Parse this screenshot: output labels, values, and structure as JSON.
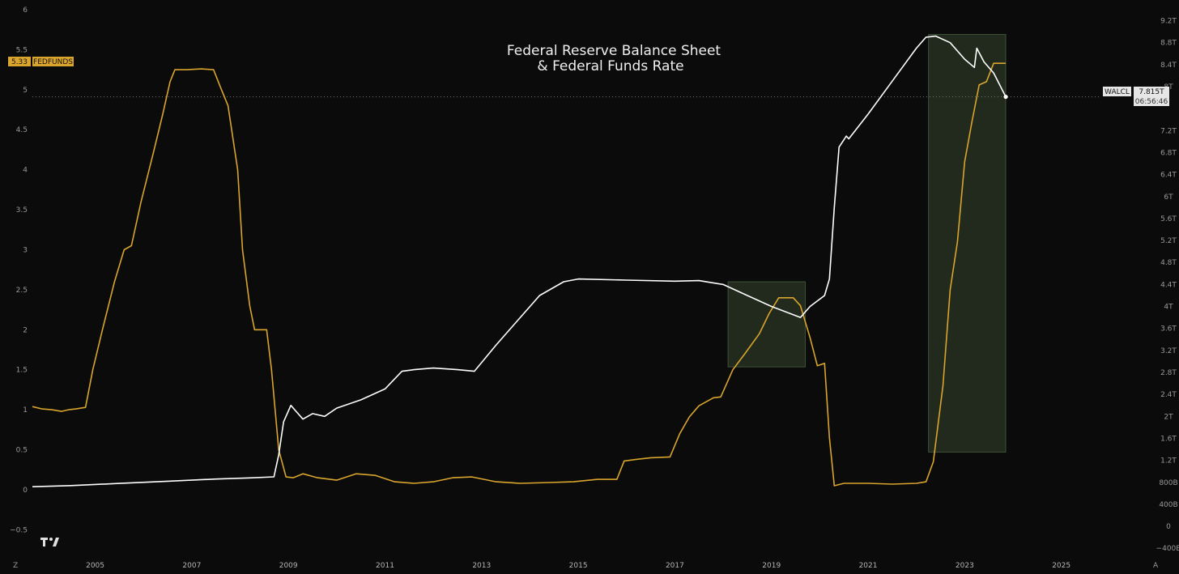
{
  "chart_data": {
    "type": "line",
    "title_lines": [
      "Federal Reserve Balance Sheet",
      "& Federal Funds Rate"
    ],
    "left_axis": {
      "range": [
        -0.8,
        6
      ],
      "ticks": [
        -0.5,
        0,
        0.5,
        1,
        1.5,
        2,
        2.5,
        3,
        3.5,
        4,
        4.5,
        5,
        5.5,
        6
      ],
      "tick_labels": [
        "−0.5",
        "0",
        "0.5",
        "1",
        "1.5",
        "2",
        "2.5",
        "3",
        "3.5",
        "4",
        "4.5",
        "5",
        "5.5",
        "6"
      ]
    },
    "right_axis": {
      "unit": "trillion USD",
      "range": [
        -0.5,
        9.4
      ],
      "ticks": [
        -0.4,
        0,
        0.4,
        0.8,
        1.2,
        1.6,
        2.0,
        2.4,
        2.8,
        3.2,
        3.6,
        4.0,
        4.4,
        4.8,
        5.2,
        5.6,
        6.0,
        6.4,
        6.8,
        7.2,
        8.0,
        8.4,
        8.8,
        9.2
      ],
      "tick_labels": [
        "−400B",
        "0",
        "400B",
        "800B",
        "1.2T",
        "1.6T",
        "2T",
        "2.4T",
        "2.8T",
        "3.2T",
        "3.6T",
        "4T",
        "4.4T",
        "4.8T",
        "5.2T",
        "5.6T",
        "6T",
        "6.4T",
        "6.8T",
        "7.2T",
        "8T",
        "8.4T",
        "8.8T",
        "9.2T"
      ]
    },
    "x_axis": {
      "range": [
        2003.7,
        2026.9
      ],
      "ticks": [
        2005,
        2007,
        2009,
        2011,
        2013,
        2015,
        2017,
        2019,
        2021,
        2023,
        2025
      ],
      "tick_labels": [
        "2005",
        "2007",
        "2009",
        "2011",
        "2013",
        "2015",
        "2017",
        "2019",
        "2021",
        "2023",
        "2025"
      ]
    },
    "series": [
      {
        "name": "FEDFUNDS",
        "axis": "left",
        "color": "#d9a52c",
        "last_value": "5.33",
        "points": [
          [
            2003.7,
            1.04
          ],
          [
            2003.9,
            1.01
          ],
          [
            2004.1,
            1.0
          ],
          [
            2004.3,
            0.98
          ],
          [
            2004.45,
            1.0
          ],
          [
            2004.6,
            1.01
          ],
          [
            2004.8,
            1.03
          ],
          [
            2004.95,
            1.5
          ],
          [
            2005.15,
            2.0
          ],
          [
            2005.4,
            2.6
          ],
          [
            2005.6,
            3.0
          ],
          [
            2005.75,
            3.05
          ],
          [
            2005.95,
            3.6
          ],
          [
            2006.2,
            4.2
          ],
          [
            2006.4,
            4.7
          ],
          [
            2006.55,
            5.1
          ],
          [
            2006.65,
            5.25
          ],
          [
            2006.9,
            5.25
          ],
          [
            2007.2,
            5.26
          ],
          [
            2007.45,
            5.25
          ],
          [
            2007.6,
            5.02
          ],
          [
            2007.75,
            4.8
          ],
          [
            2007.95,
            4.0
          ],
          [
            2008.05,
            3.0
          ],
          [
            2008.2,
            2.3
          ],
          [
            2008.3,
            2.0
          ],
          [
            2008.55,
            2.0
          ],
          [
            2008.65,
            1.5
          ],
          [
            2008.8,
            0.5
          ],
          [
            2008.95,
            0.16
          ],
          [
            2009.1,
            0.15
          ],
          [
            2009.3,
            0.2
          ],
          [
            2009.6,
            0.15
          ],
          [
            2010.0,
            0.12
          ],
          [
            2010.4,
            0.2
          ],
          [
            2010.8,
            0.18
          ],
          [
            2011.2,
            0.1
          ],
          [
            2011.6,
            0.08
          ],
          [
            2012.0,
            0.1
          ],
          [
            2012.4,
            0.15
          ],
          [
            2012.8,
            0.16
          ],
          [
            2013.3,
            0.1
          ],
          [
            2013.8,
            0.08
          ],
          [
            2014.4,
            0.09
          ],
          [
            2014.9,
            0.1
          ],
          [
            2015.4,
            0.13
          ],
          [
            2015.8,
            0.13
          ],
          [
            2015.95,
            0.36
          ],
          [
            2016.2,
            0.38
          ],
          [
            2016.5,
            0.4
          ],
          [
            2016.9,
            0.41
          ],
          [
            2017.1,
            0.7
          ],
          [
            2017.3,
            0.91
          ],
          [
            2017.5,
            1.05
          ],
          [
            2017.8,
            1.15
          ],
          [
            2017.95,
            1.16
          ],
          [
            2018.2,
            1.5
          ],
          [
            2018.45,
            1.7
          ],
          [
            2018.75,
            1.95
          ],
          [
            2018.95,
            2.2
          ],
          [
            2019.15,
            2.4
          ],
          [
            2019.45,
            2.4
          ],
          [
            2019.6,
            2.3
          ],
          [
            2019.8,
            1.9
          ],
          [
            2019.95,
            1.55
          ],
          [
            2020.1,
            1.58
          ],
          [
            2020.2,
            0.65
          ],
          [
            2020.3,
            0.05
          ],
          [
            2020.5,
            0.08
          ],
          [
            2021.0,
            0.08
          ],
          [
            2021.5,
            0.07
          ],
          [
            2022.0,
            0.08
          ],
          [
            2022.2,
            0.1
          ],
          [
            2022.35,
            0.35
          ],
          [
            2022.55,
            1.3
          ],
          [
            2022.7,
            2.5
          ],
          [
            2022.85,
            3.1
          ],
          [
            2023.0,
            4.1
          ],
          [
            2023.15,
            4.6
          ],
          [
            2023.3,
            5.06
          ],
          [
            2023.45,
            5.1
          ],
          [
            2023.6,
            5.33
          ],
          [
            2023.85,
            5.33
          ]
        ]
      },
      {
        "name": "WALCL",
        "axis": "right",
        "color": "#ffffff",
        "last_value": "7.815T",
        "countdown": "06:56:46",
        "points": [
          [
            2003.7,
            0.72
          ],
          [
            2004.5,
            0.74
          ],
          [
            2005.5,
            0.78
          ],
          [
            2006.5,
            0.82
          ],
          [
            2007.5,
            0.86
          ],
          [
            2008.2,
            0.88
          ],
          [
            2008.7,
            0.9
          ],
          [
            2008.8,
            1.3
          ],
          [
            2008.9,
            1.9
          ],
          [
            2009.05,
            2.2
          ],
          [
            2009.15,
            2.1
          ],
          [
            2009.3,
            1.95
          ],
          [
            2009.5,
            2.05
          ],
          [
            2009.75,
            2.0
          ],
          [
            2010.0,
            2.15
          ],
          [
            2010.5,
            2.3
          ],
          [
            2011.0,
            2.5
          ],
          [
            2011.35,
            2.82
          ],
          [
            2011.6,
            2.85
          ],
          [
            2012.0,
            2.88
          ],
          [
            2012.5,
            2.85
          ],
          [
            2012.85,
            2.82
          ],
          [
            2013.3,
            3.3
          ],
          [
            2013.7,
            3.7
          ],
          [
            2014.2,
            4.2
          ],
          [
            2014.7,
            4.45
          ],
          [
            2015.0,
            4.5
          ],
          [
            2016.0,
            4.48
          ],
          [
            2017.0,
            4.46
          ],
          [
            2017.5,
            4.47
          ],
          [
            2018.0,
            4.4
          ],
          [
            2018.5,
            4.2
          ],
          [
            2019.0,
            4.0
          ],
          [
            2019.6,
            3.8
          ],
          [
            2019.8,
            4.0
          ],
          [
            2020.1,
            4.2
          ],
          [
            2020.2,
            4.5
          ],
          [
            2020.3,
            5.8
          ],
          [
            2020.4,
            6.9
          ],
          [
            2020.55,
            7.1
          ],
          [
            2020.6,
            7.05
          ],
          [
            2021.0,
            7.5
          ],
          [
            2021.5,
            8.1
          ],
          [
            2022.0,
            8.7
          ],
          [
            2022.2,
            8.9
          ],
          [
            2022.4,
            8.92
          ],
          [
            2022.7,
            8.8
          ],
          [
            2023.0,
            8.5
          ],
          [
            2023.2,
            8.35
          ],
          [
            2023.25,
            8.7
          ],
          [
            2023.4,
            8.45
          ],
          [
            2023.6,
            8.25
          ],
          [
            2023.85,
            7.815
          ]
        ]
      }
    ],
    "highlight_regions": [
      {
        "x": [
          2018.1,
          2019.7
        ],
        "right_axis_range": [
          2.9,
          4.45
        ]
      },
      {
        "x": [
          2022.25,
          2023.85
        ],
        "right_axis_range": [
          1.35,
          8.95
        ]
      }
    ],
    "grid": false,
    "watermark": "tradingview-logo",
    "axis_corner_labels": {
      "left": "Z",
      "right": "A"
    }
  }
}
